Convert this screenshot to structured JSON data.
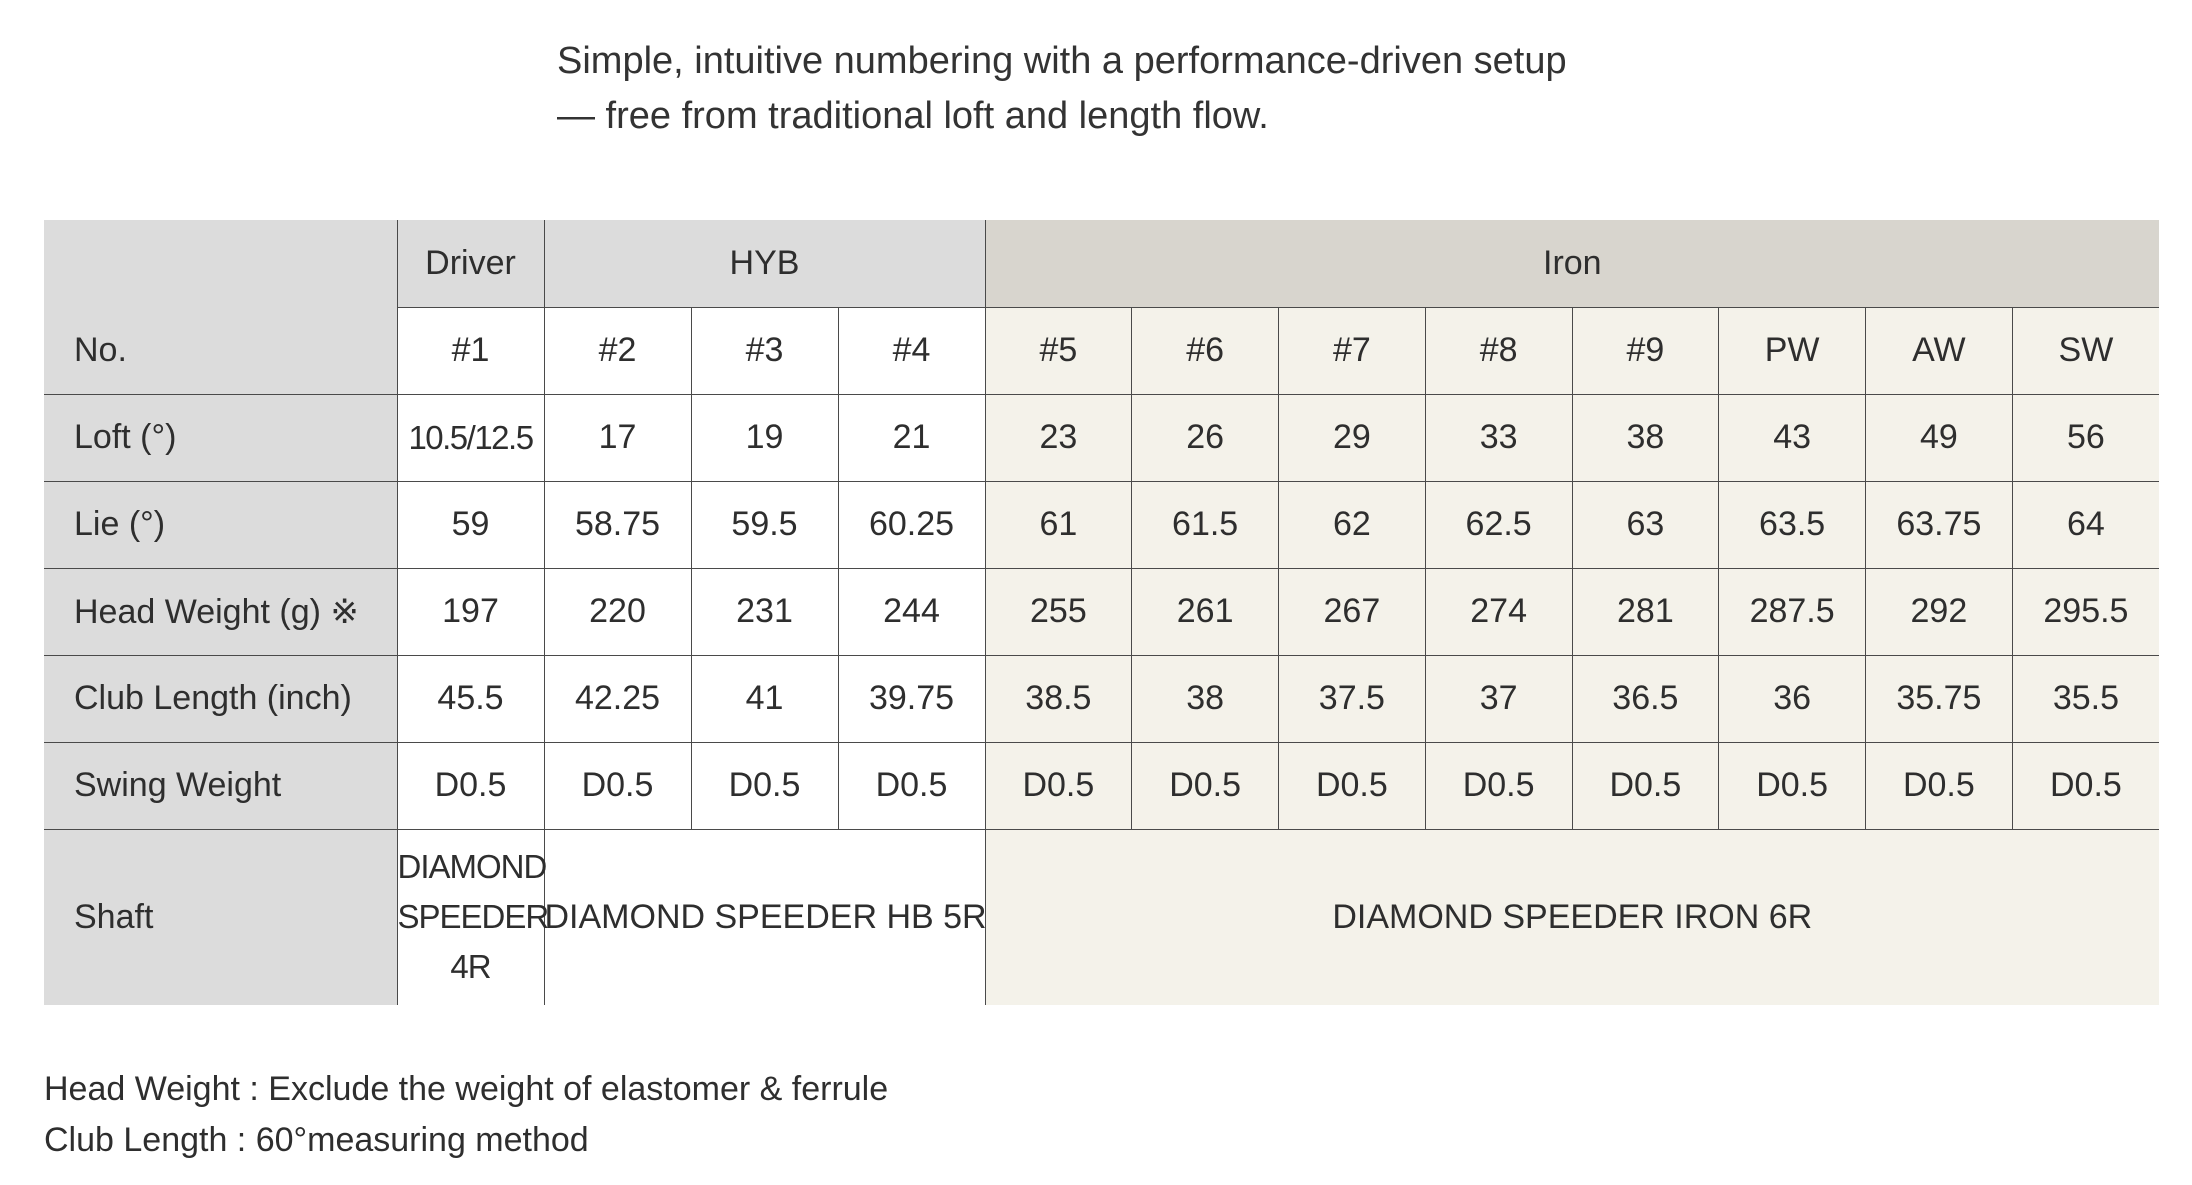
{
  "intro": {
    "line1": "Simple, intuitive numbering with a performance-driven setup",
    "line2": "— free from traditional loft and length flow."
  },
  "table": {
    "groups": {
      "driver": "Driver",
      "hyb": "HYB",
      "iron": "Iron"
    },
    "rows": {
      "no": {
        "label": "No.",
        "values": [
          "#1",
          "#2",
          "#3",
          "#4",
          "#5",
          "#6",
          "#7",
          "#8",
          "#9",
          "PW",
          "AW",
          "SW"
        ]
      },
      "loft": {
        "label": "Loft (°)",
        "values": [
          "10.5/12.5",
          "17",
          "19",
          "21",
          "23",
          "26",
          "29",
          "33",
          "38",
          "43",
          "49",
          "56"
        ]
      },
      "lie": {
        "label": "Lie (°)",
        "values": [
          "59",
          "58.75",
          "59.5",
          "60.25",
          "61",
          "61.5",
          "62",
          "62.5",
          "63",
          "63.5",
          "63.75",
          "64"
        ]
      },
      "head_weight": {
        "label": "Head Weight (g) ※",
        "values": [
          "197",
          "220",
          "231",
          "244",
          "255",
          "261",
          "267",
          "274",
          "281",
          "287.5",
          "292",
          "295.5"
        ]
      },
      "club_length": {
        "label": "Club Length (inch)",
        "values": [
          "45.5",
          "42.25",
          "41",
          "39.75",
          "38.5",
          "38",
          "37.5",
          "37",
          "36.5",
          "36",
          "35.75",
          "35.5"
        ]
      },
      "swing_weight": {
        "label": "Swing Weight",
        "values": [
          "D0.5",
          "D0.5",
          "D0.5",
          "D0.5",
          "D0.5",
          "D0.5",
          "D0.5",
          "D0.5",
          "D0.5",
          "D0.5",
          "D0.5",
          "D0.5"
        ]
      },
      "shaft": {
        "label": "Shaft",
        "driver": "DIAMOND SPEEDER 4R",
        "hyb": "DIAMOND SPEEDER HB 5R",
        "iron": "DIAMOND SPEEDER IRON 6R"
      }
    },
    "colors": {
      "label_bg": "#dcdcdc",
      "iron_header_bg": "#d8d5ce",
      "iron_cell_bg": "#f4f2ea",
      "border": "#4a4a4a"
    }
  },
  "notes": {
    "head_weight": "Head Weight : Exclude the weight of elastomer & ferrule",
    "club_length": "Club Length : 60°measuring method"
  }
}
